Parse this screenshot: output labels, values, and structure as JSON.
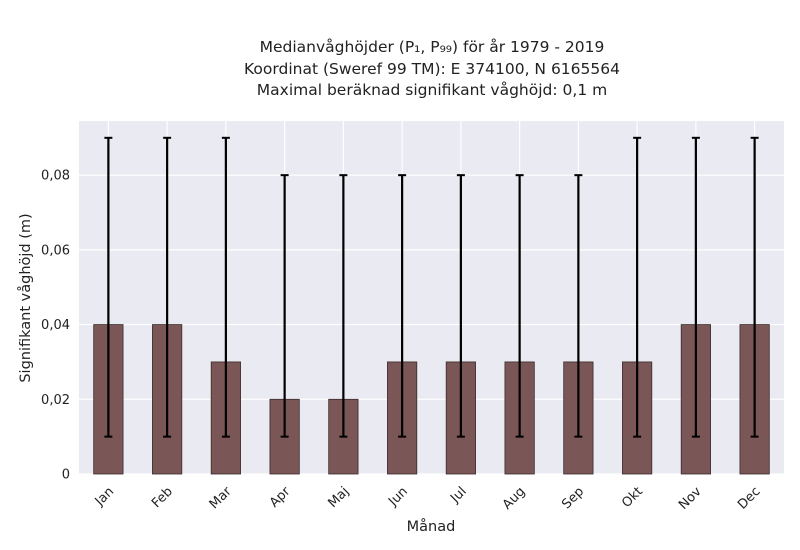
{
  "chart_data": {
    "type": "bar",
    "title": [
      "Medianvåghöjder (P₁, P₉₉) för år 1979 - 2019",
      "Koordinat (Sweref 99 TM): E 374100, N 6165564",
      "Maximal beräknad signifikant våghöjd: 0,1 m"
    ],
    "xlabel": "Månad",
    "ylabel": "Signifikant våghöjd (m)",
    "categories": [
      "Jan",
      "Feb",
      "Mar",
      "Apr",
      "Maj",
      "Jun",
      "Jul",
      "Aug",
      "Sep",
      "Okt",
      "Nov",
      "Dec"
    ],
    "values": [
      0.04,
      0.04,
      0.03,
      0.02,
      0.02,
      0.03,
      0.03,
      0.03,
      0.03,
      0.03,
      0.04,
      0.04
    ],
    "error_low": [
      0.01,
      0.01,
      0.01,
      0.01,
      0.01,
      0.01,
      0.01,
      0.01,
      0.01,
      0.01,
      0.01,
      0.01
    ],
    "error_high": [
      0.09,
      0.09,
      0.09,
      0.08,
      0.08,
      0.08,
      0.08,
      0.08,
      0.08,
      0.09,
      0.09,
      0.09
    ],
    "ylim": [
      0,
      0.0945
    ],
    "yticks": [
      0,
      0.02,
      0.04,
      0.06,
      0.08
    ],
    "ytick_labels": [
      "0",
      "0,02",
      "0,04",
      "0,06",
      "0,08"
    ],
    "grid": true,
    "colors": {
      "bar": "#7a5756",
      "bar_edge": "#3a2a2a",
      "background": "#eaeaf2",
      "grid": "#ffffff",
      "errorbar": "#000000"
    }
  }
}
